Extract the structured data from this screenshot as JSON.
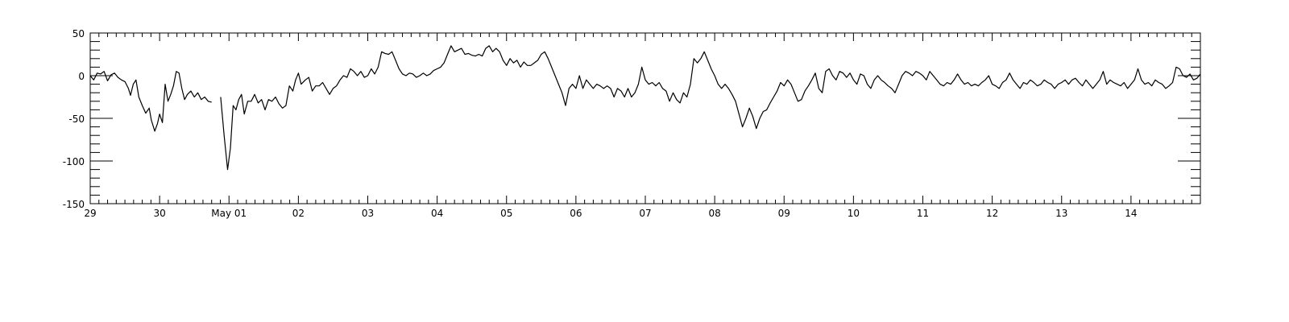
{
  "chart_data": {
    "type": "line",
    "title": "",
    "xlabel": "",
    "ylabel": "",
    "x_axis": {
      "range_days": [
        0,
        16
      ],
      "major_labels": [
        "29",
        "30",
        "May 01",
        "02",
        "03",
        "04",
        "05",
        "06",
        "07",
        "08",
        "09",
        "10",
        "11",
        "12",
        "13",
        "14"
      ],
      "minor_ticks_per_day": 8
    },
    "y_axis": {
      "ylim": [
        -150,
        50
      ],
      "major_ticks": [
        -150,
        -100,
        -50,
        0,
        50
      ],
      "major_labels": [
        "-150",
        "-100",
        "-50",
        "0",
        "50"
      ],
      "minor_step": 10
    },
    "grid": false,
    "colors": {
      "line": "#000000",
      "axis": "#000000"
    },
    "series": [
      {
        "points": [
          [
            0.0,
            0
          ],
          [
            0.05,
            -5
          ],
          [
            0.1,
            3
          ],
          [
            0.15,
            2
          ],
          [
            0.2,
            5
          ],
          [
            0.25,
            -6
          ],
          [
            0.3,
            1
          ],
          [
            0.35,
            3
          ],
          [
            0.4,
            -2
          ],
          [
            0.45,
            -5
          ],
          [
            0.5,
            -7
          ],
          [
            0.55,
            -15
          ],
          [
            0.58,
            -23
          ],
          [
            0.62,
            -10
          ],
          [
            0.66,
            -5
          ],
          [
            0.7,
            -25
          ],
          [
            0.75,
            -35
          ],
          [
            0.8,
            -44
          ],
          [
            0.85,
            -38
          ],
          [
            0.88,
            -52
          ],
          [
            0.93,
            -65
          ],
          [
            0.97,
            -56
          ],
          [
            1.0,
            -45
          ],
          [
            1.04,
            -55
          ],
          [
            1.08,
            -10
          ],
          [
            1.12,
            -30
          ],
          [
            1.16,
            -22
          ],
          [
            1.2,
            -12
          ],
          [
            1.24,
            5
          ],
          [
            1.28,
            3
          ],
          [
            1.32,
            -15
          ],
          [
            1.36,
            -28
          ],
          [
            1.4,
            -22
          ],
          [
            1.45,
            -18
          ],
          [
            1.5,
            -25
          ],
          [
            1.55,
            -20
          ],
          [
            1.6,
            -28
          ],
          [
            1.65,
            -25
          ],
          [
            1.7,
            -30
          ],
          [
            1.75,
            -31
          ],
          null,
          [
            1.88,
            -25
          ],
          [
            1.93,
            -70
          ],
          [
            1.98,
            -110
          ],
          [
            2.02,
            -85
          ],
          [
            2.06,
            -35
          ],
          [
            2.1,
            -40
          ],
          [
            2.14,
            -28
          ],
          [
            2.18,
            -22
          ],
          [
            2.22,
            -45
          ],
          [
            2.27,
            -30
          ],
          [
            2.32,
            -30
          ],
          [
            2.37,
            -22
          ],
          [
            2.42,
            -32
          ],
          [
            2.47,
            -28
          ],
          [
            2.52,
            -40
          ],
          [
            2.57,
            -28
          ],
          [
            2.62,
            -30
          ],
          [
            2.67,
            -25
          ],
          [
            2.72,
            -33
          ],
          [
            2.77,
            -38
          ],
          [
            2.82,
            -35
          ],
          [
            2.87,
            -12
          ],
          [
            2.92,
            -18
          ],
          [
            2.96,
            -5
          ],
          [
            3.0,
            3
          ],
          [
            3.04,
            -10
          ],
          [
            3.1,
            -5
          ],
          [
            3.15,
            -2
          ],
          [
            3.2,
            -18
          ],
          [
            3.25,
            -12
          ],
          [
            3.3,
            -12
          ],
          [
            3.35,
            -8
          ],
          [
            3.4,
            -15
          ],
          [
            3.45,
            -22
          ],
          [
            3.5,
            -15
          ],
          [
            3.55,
            -12
          ],
          [
            3.6,
            -5
          ],
          [
            3.65,
            0
          ],
          [
            3.7,
            -2
          ],
          [
            3.75,
            8
          ],
          [
            3.8,
            5
          ],
          [
            3.85,
            0
          ],
          [
            3.9,
            5
          ],
          [
            3.95,
            -2
          ],
          [
            4.0,
            0
          ],
          [
            4.05,
            8
          ],
          [
            4.1,
            2
          ],
          [
            4.15,
            10
          ],
          [
            4.2,
            28
          ],
          [
            4.25,
            26
          ],
          [
            4.3,
            25
          ],
          [
            4.35,
            28
          ],
          [
            4.4,
            18
          ],
          [
            4.45,
            8
          ],
          [
            4.5,
            2
          ],
          [
            4.55,
            0
          ],
          [
            4.6,
            3
          ],
          [
            4.65,
            2
          ],
          [
            4.7,
            -2
          ],
          [
            4.75,
            0
          ],
          [
            4.8,
            3
          ],
          [
            4.85,
            0
          ],
          [
            4.9,
            2
          ],
          [
            4.95,
            6
          ],
          [
            5.0,
            8
          ],
          [
            5.05,
            10
          ],
          [
            5.1,
            15
          ],
          [
            5.15,
            25
          ],
          [
            5.2,
            35
          ],
          [
            5.25,
            28
          ],
          [
            5.3,
            30
          ],
          [
            5.35,
            32
          ],
          [
            5.4,
            25
          ],
          [
            5.45,
            26
          ],
          [
            5.5,
            24
          ],
          [
            5.55,
            23
          ],
          [
            5.6,
            25
          ],
          [
            5.65,
            23
          ],
          [
            5.7,
            32
          ],
          [
            5.75,
            35
          ],
          [
            5.8,
            28
          ],
          [
            5.85,
            32
          ],
          [
            5.9,
            28
          ],
          [
            5.95,
            18
          ],
          [
            6.0,
            12
          ],
          [
            6.05,
            20
          ],
          [
            6.1,
            15
          ],
          [
            6.15,
            18
          ],
          [
            6.2,
            10
          ],
          [
            6.25,
            16
          ],
          [
            6.3,
            12
          ],
          [
            6.35,
            12
          ],
          [
            6.4,
            15
          ],
          [
            6.45,
            18
          ],
          [
            6.5,
            25
          ],
          [
            6.55,
            28
          ],
          [
            6.6,
            20
          ],
          [
            6.65,
            10
          ],
          [
            6.7,
            0
          ],
          [
            6.75,
            -10
          ],
          [
            6.8,
            -20
          ],
          [
            6.85,
            -35
          ],
          [
            6.9,
            -15
          ],
          [
            6.95,
            -10
          ],
          [
            7.0,
            -15
          ],
          [
            7.05,
            0
          ],
          [
            7.1,
            -15
          ],
          [
            7.15,
            -5
          ],
          [
            7.2,
            -10
          ],
          [
            7.25,
            -15
          ],
          [
            7.3,
            -10
          ],
          [
            7.35,
            -12
          ],
          [
            7.4,
            -15
          ],
          [
            7.45,
            -12
          ],
          [
            7.5,
            -15
          ],
          [
            7.55,
            -25
          ],
          [
            7.6,
            -15
          ],
          [
            7.65,
            -18
          ],
          [
            7.7,
            -25
          ],
          [
            7.75,
            -15
          ],
          [
            7.8,
            -25
          ],
          [
            7.85,
            -20
          ],
          [
            7.9,
            -10
          ],
          [
            7.95,
            10
          ],
          [
            8.0,
            -5
          ],
          [
            8.05,
            -10
          ],
          [
            8.1,
            -8
          ],
          [
            8.15,
            -12
          ],
          [
            8.2,
            -8
          ],
          [
            8.25,
            -15
          ],
          [
            8.3,
            -18
          ],
          [
            8.35,
            -30
          ],
          [
            8.4,
            -20
          ],
          [
            8.45,
            -28
          ],
          [
            8.5,
            -32
          ],
          [
            8.55,
            -20
          ],
          [
            8.6,
            -25
          ],
          [
            8.65,
            -10
          ],
          [
            8.7,
            20
          ],
          [
            8.75,
            15
          ],
          [
            8.8,
            20
          ],
          [
            8.85,
            28
          ],
          [
            8.9,
            18
          ],
          [
            8.95,
            8
          ],
          [
            9.0,
            0
          ],
          [
            9.05,
            -10
          ],
          [
            9.1,
            -15
          ],
          [
            9.15,
            -10
          ],
          [
            9.2,
            -15
          ],
          [
            9.25,
            -22
          ],
          [
            9.3,
            -30
          ],
          [
            9.35,
            -45
          ],
          [
            9.4,
            -60
          ],
          [
            9.45,
            -50
          ],
          [
            9.5,
            -38
          ],
          [
            9.55,
            -48
          ],
          [
            9.6,
            -62
          ],
          [
            9.65,
            -50
          ],
          [
            9.7,
            -42
          ],
          [
            9.75,
            -40
          ],
          [
            9.8,
            -32
          ],
          [
            9.85,
            -25
          ],
          [
            9.9,
            -18
          ],
          [
            9.95,
            -8
          ],
          [
            10.0,
            -12
          ],
          [
            10.05,
            -5
          ],
          [
            10.1,
            -10
          ],
          [
            10.15,
            -20
          ],
          [
            10.2,
            -30
          ],
          [
            10.25,
            -28
          ],
          [
            10.3,
            -18
          ],
          [
            10.35,
            -12
          ],
          [
            10.4,
            -5
          ],
          [
            10.45,
            3
          ],
          [
            10.5,
            -15
          ],
          [
            10.55,
            -20
          ],
          [
            10.6,
            5
          ],
          [
            10.65,
            8
          ],
          [
            10.7,
            0
          ],
          [
            10.75,
            -5
          ],
          [
            10.8,
            5
          ],
          [
            10.85,
            3
          ],
          [
            10.9,
            -2
          ],
          [
            10.95,
            3
          ],
          [
            11.0,
            -5
          ],
          [
            11.05,
            -10
          ],
          [
            11.1,
            2
          ],
          [
            11.15,
            0
          ],
          [
            11.2,
            -10
          ],
          [
            11.25,
            -15
          ],
          [
            11.3,
            -5
          ],
          [
            11.35,
            0
          ],
          [
            11.4,
            -5
          ],
          [
            11.45,
            -8
          ],
          [
            11.5,
            -12
          ],
          [
            11.55,
            -15
          ],
          [
            11.6,
            -20
          ],
          [
            11.65,
            -10
          ],
          [
            11.7,
            0
          ],
          [
            11.75,
            5
          ],
          [
            11.8,
            3
          ],
          [
            11.85,
            0
          ],
          [
            11.9,
            5
          ],
          [
            11.95,
            3
          ],
          [
            12.0,
            0
          ],
          [
            12.05,
            -5
          ],
          [
            12.1,
            5
          ],
          [
            12.15,
            0
          ],
          [
            12.2,
            -5
          ],
          [
            12.25,
            -10
          ],
          [
            12.3,
            -12
          ],
          [
            12.35,
            -8
          ],
          [
            12.4,
            -10
          ],
          [
            12.45,
            -5
          ],
          [
            12.5,
            2
          ],
          [
            12.55,
            -5
          ],
          [
            12.6,
            -10
          ],
          [
            12.65,
            -8
          ],
          [
            12.7,
            -12
          ],
          [
            12.75,
            -10
          ],
          [
            12.8,
            -12
          ],
          [
            12.85,
            -8
          ],
          [
            12.9,
            -5
          ],
          [
            12.95,
            0
          ],
          [
            13.0,
            -10
          ],
          [
            13.05,
            -12
          ],
          [
            13.1,
            -15
          ],
          [
            13.15,
            -8
          ],
          [
            13.2,
            -5
          ],
          [
            13.25,
            3
          ],
          [
            13.3,
            -5
          ],
          [
            13.35,
            -10
          ],
          [
            13.4,
            -15
          ],
          [
            13.45,
            -8
          ],
          [
            13.5,
            -10
          ],
          [
            13.55,
            -5
          ],
          [
            13.6,
            -8
          ],
          [
            13.65,
            -12
          ],
          [
            13.7,
            -10
          ],
          [
            13.75,
            -5
          ],
          [
            13.8,
            -8
          ],
          [
            13.85,
            -10
          ],
          [
            13.9,
            -15
          ],
          [
            13.95,
            -10
          ],
          [
            14.0,
            -8
          ],
          [
            14.05,
            -5
          ],
          [
            14.1,
            -10
          ],
          [
            14.15,
            -5
          ],
          [
            14.2,
            -3
          ],
          [
            14.25,
            -8
          ],
          [
            14.3,
            -12
          ],
          [
            14.35,
            -5
          ],
          [
            14.4,
            -10
          ],
          [
            14.45,
            -15
          ],
          [
            14.5,
            -10
          ],
          [
            14.55,
            -5
          ],
          [
            14.6,
            5
          ],
          [
            14.65,
            -10
          ],
          [
            14.7,
            -5
          ],
          [
            14.75,
            -8
          ],
          [
            14.8,
            -10
          ],
          [
            14.85,
            -12
          ],
          [
            14.9,
            -8
          ],
          [
            14.95,
            -15
          ],
          [
            15.0,
            -10
          ],
          [
            15.05,
            -5
          ],
          [
            15.1,
            8
          ],
          [
            15.15,
            -5
          ],
          [
            15.2,
            -10
          ],
          [
            15.25,
            -8
          ],
          [
            15.3,
            -12
          ],
          [
            15.35,
            -5
          ],
          [
            15.4,
            -8
          ],
          [
            15.45,
            -10
          ],
          [
            15.5,
            -15
          ],
          [
            15.55,
            -12
          ],
          [
            15.6,
            -8
          ],
          [
            15.65,
            10
          ],
          [
            15.7,
            8
          ],
          [
            15.75,
            0
          ],
          [
            15.8,
            -2
          ],
          [
            15.85,
            2
          ],
          [
            15.9,
            -5
          ],
          [
            15.95,
            -3
          ],
          [
            16.0,
            2
          ]
        ]
      }
    ]
  }
}
